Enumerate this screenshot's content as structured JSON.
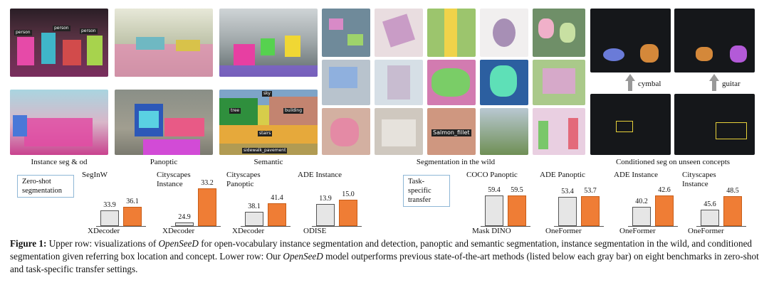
{
  "panels": {
    "instance_seg_od": "Instance seg & od",
    "panoptic": "Panoptic",
    "semantic": "Semantic",
    "in_the_wild": "Segmentation in the wild",
    "conditioned": "Conditioned seg on unseen concepts"
  },
  "image_tags": {
    "person": "person",
    "sky": "sky",
    "tree": "tree",
    "building": "building",
    "stairs": "stairs",
    "sidewalk": "sidewalk_pavement",
    "salmon": "Salmon_fillet",
    "cymbal": "cymbal",
    "guitar": "guitar"
  },
  "groups": {
    "zero_shot": "Zero-shot segmentation",
    "task_specific": "Task-specific transfer"
  },
  "colors": {
    "ours": "#ef7d35",
    "baseline": "#e6e6e6",
    "box_border": "#8fb7d6"
  },
  "charts": [
    {
      "title": "SegInW",
      "baseline_method": "XDecoder",
      "baseline": 33.9,
      "ours": 36.1,
      "min": 24,
      "max": 50
    },
    {
      "title": "Cityscapes Instance",
      "baseline_method": "XDecoder",
      "baseline": 24.9,
      "ours": 33.2,
      "min": 24,
      "max": 34
    },
    {
      "title": "Cityscapes Panoptic",
      "baseline_method": "XDecoder",
      "baseline": 38.1,
      "ours": 41.4,
      "min": 33,
      "max": 48
    },
    {
      "title": "ADE Instance",
      "baseline_method": "ODISE",
      "baseline": 13.9,
      "ours": 15.0,
      "min": 8,
      "max": 19
    },
    {
      "title": "COCO Panoptic",
      "baseline_method": "Mask DINO",
      "baseline": 59.4,
      "ours": 59.5,
      "min": 40,
      "max": 66
    },
    {
      "title": "ADE Panoptic",
      "baseline_method": "OneFormer",
      "baseline": 53.4,
      "ours": 53.7,
      "min": 40,
      "max": 59
    },
    {
      "title": "ADE Instance",
      "baseline_method": "OneFormer",
      "baseline": 40.2,
      "ours": 42.6,
      "min": 36,
      "max": 45
    },
    {
      "title": "Cityscapes Instance",
      "baseline_method": "OneFormer",
      "baseline": 45.6,
      "ours": 48.5,
      "min": 42,
      "max": 51
    }
  ],
  "caption": {
    "label": "Figure 1:",
    "part1": " Upper row: visualizations of ",
    "model": "OpenSeeD",
    "part2": " for open-vocabulary instance segmentation and detection, panoptic and semantic segmentation, instance segmentation in the wild, and conditioned segmentation given referring box location and concept. Lower row: Our ",
    "part3": " model outperforms previous state-of-the-art methods (listed below each gray bar) on eight benchmarks in zero-shot and task-specific transfer settings."
  }
}
